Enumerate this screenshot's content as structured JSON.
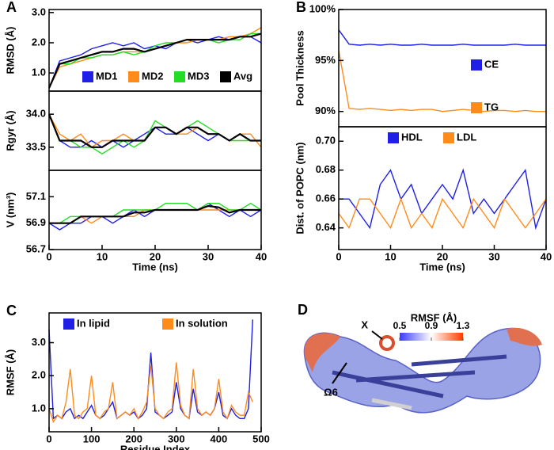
{
  "chart_data": [
    {
      "type": "line",
      "panel": "A",
      "ylabel": "RMSD (Å)",
      "x": [
        0,
        2,
        4,
        6,
        8,
        10,
        12,
        14,
        16,
        18,
        20,
        22,
        24,
        26,
        28,
        30,
        32,
        34,
        36,
        38,
        40
      ],
      "xlim": [
        0,
        40
      ],
      "ylim": [
        0.4,
        3.1
      ],
      "yticks": [
        {
          "value": 1,
          "label": "1.0"
        },
        {
          "value": 2,
          "label": "2.0"
        },
        {
          "value": 3,
          "label": "3.0"
        }
      ],
      "legend": "bottom-row",
      "series": [
        {
          "name": "MD1",
          "color": "#1f1fe6",
          "values": [
            0.5,
            1.4,
            1.5,
            1.6,
            1.8,
            1.9,
            2.0,
            1.9,
            2.0,
            1.8,
            1.9,
            1.8,
            2.0,
            2.1,
            2.0,
            2.1,
            2.2,
            2.1,
            2.2,
            2.2,
            2.0
          ]
        },
        {
          "name": "MD2",
          "color": "#ff8c1a",
          "values": [
            0.5,
            1.2,
            1.3,
            1.4,
            1.5,
            1.6,
            1.6,
            1.7,
            1.7,
            1.7,
            1.8,
            1.9,
            2.0,
            2.0,
            2.1,
            2.1,
            2.1,
            2.2,
            2.2,
            2.3,
            2.5
          ]
        },
        {
          "name": "MD3",
          "color": "#22dd22",
          "values": [
            0.5,
            1.3,
            1.3,
            1.5,
            1.5,
            1.6,
            1.6,
            1.7,
            1.6,
            1.7,
            1.9,
            2.0,
            2.0,
            2.1,
            2.1,
            2.1,
            2.0,
            2.1,
            2.1,
            2.3,
            2.3
          ]
        },
        {
          "name": "Avg",
          "color": "#000000",
          "values": [
            0.5,
            1.3,
            1.4,
            1.5,
            1.6,
            1.7,
            1.7,
            1.8,
            1.8,
            1.7,
            1.8,
            1.9,
            2.0,
            2.1,
            2.1,
            2.1,
            2.1,
            2.1,
            2.2,
            2.2,
            2.3
          ]
        }
      ]
    },
    {
      "type": "line",
      "ylabel": "Rgyr (Å)",
      "x": [
        0,
        2,
        4,
        6,
        8,
        10,
        12,
        14,
        16,
        18,
        20,
        22,
        24,
        26,
        28,
        30,
        32,
        34,
        36,
        38,
        40
      ],
      "xlim": [
        0,
        40
      ],
      "ylim": [
        33.15,
        34.35
      ],
      "yticks": [
        33.5,
        {
          "value": 34,
          "label": "34.0"
        }
      ],
      "series": [
        {
          "name": "MD1",
          "color": "#1f1fe6",
          "values": [
            34.0,
            33.6,
            33.5,
            33.5,
            33.6,
            33.5,
            33.6,
            33.5,
            33.6,
            33.7,
            33.8,
            33.7,
            33.7,
            33.8,
            33.7,
            33.6,
            33.7,
            33.6,
            33.7,
            33.6,
            33.6
          ]
        },
        {
          "name": "MD2",
          "color": "#ff8c1a",
          "values": [
            34.0,
            33.7,
            33.6,
            33.7,
            33.5,
            33.6,
            33.6,
            33.7,
            33.6,
            33.6,
            33.8,
            33.8,
            33.7,
            33.7,
            33.8,
            33.7,
            33.7,
            33.6,
            33.7,
            33.7,
            33.5
          ]
        },
        {
          "name": "MD3",
          "color": "#22dd22",
          "values": [
            34.0,
            33.6,
            33.6,
            33.5,
            33.5,
            33.4,
            33.5,
            33.6,
            33.5,
            33.6,
            33.9,
            33.8,
            33.7,
            33.8,
            33.9,
            33.8,
            33.7,
            33.6,
            33.6,
            33.6,
            33.6
          ]
        },
        {
          "name": "Avg",
          "color": "#000000",
          "values": [
            34.0,
            33.6,
            33.6,
            33.6,
            33.5,
            33.5,
            33.6,
            33.6,
            33.6,
            33.6,
            33.8,
            33.8,
            33.7,
            33.8,
            33.8,
            33.7,
            33.7,
            33.6,
            33.7,
            33.6,
            33.6
          ]
        }
      ]
    },
    {
      "type": "line",
      "ylabel": "V (nm³)",
      "xlabel": "Time (ns)",
      "x": [
        0,
        2,
        4,
        6,
        8,
        10,
        12,
        14,
        16,
        18,
        20,
        22,
        24,
        26,
        28,
        30,
        32,
        34,
        36,
        38,
        40
      ],
      "xlim": [
        0,
        40
      ],
      "xticks": [
        0,
        10,
        20,
        30,
        40
      ],
      "ylim": [
        56.7,
        57.3
      ],
      "yticks": [
        56.7,
        56.9,
        57.1
      ],
      "series": [
        {
          "name": "MD1",
          "color": "#1f1fe6",
          "values": [
            56.9,
            56.85,
            56.9,
            56.9,
            56.95,
            56.95,
            56.9,
            56.95,
            57.0,
            56.95,
            57.0,
            57.0,
            57.0,
            57.0,
            57.0,
            57.05,
            57.0,
            56.95,
            57.0,
            56.95,
            57.0
          ]
        },
        {
          "name": "MD2",
          "color": "#ff8c1a",
          "values": [
            56.9,
            56.9,
            56.9,
            56.95,
            56.9,
            56.95,
            56.95,
            56.95,
            56.95,
            57.0,
            57.0,
            57.0,
            57.0,
            57.0,
            57.0,
            57.0,
            57.0,
            57.0,
            57.0,
            57.0,
            57.0
          ]
        },
        {
          "name": "MD3",
          "color": "#22dd22",
          "values": [
            56.9,
            56.9,
            56.95,
            56.95,
            56.95,
            56.95,
            56.95,
            57.0,
            57.0,
            57.0,
            57.0,
            57.05,
            57.05,
            57.05,
            57.0,
            57.05,
            57.05,
            57.0,
            57.0,
            57.05,
            57.0
          ]
        },
        {
          "name": "Avg",
          "color": "#000000",
          "values": [
            56.9,
            56.9,
            56.9,
            56.95,
            56.95,
            56.95,
            56.95,
            56.95,
            56.98,
            56.98,
            57.0,
            57.0,
            57.0,
            57.0,
            57.0,
            57.03,
            57.02,
            56.98,
            57.0,
            57.0,
            57.0
          ]
        }
      ]
    },
    {
      "type": "line",
      "panel": "B",
      "ylabel": "Pool Thickness",
      "x": [
        0,
        2,
        4,
        6,
        8,
        10,
        12,
        14,
        16,
        18,
        20,
        22,
        24,
        26,
        28,
        30,
        32,
        34,
        36,
        38,
        40
      ],
      "xlim": [
        0,
        40
      ],
      "ylim": [
        88.5,
        100
      ],
      "yticks": [
        {
          "value": 90,
          "label": "90%"
        },
        {
          "value": 95,
          "label": "95%"
        },
        {
          "value": 100,
          "label": "100%"
        }
      ],
      "legend": "right-column",
      "series": [
        {
          "name": "CE",
          "color": "#1f1fe6",
          "values": [
            98,
            96.6,
            96.5,
            96.6,
            96.5,
            96.6,
            96.5,
            96.5,
            96.6,
            96.5,
            96.5,
            96.5,
            96.6,
            96.5,
            96.5,
            96.5,
            96.5,
            96.6,
            96.5,
            96.5,
            96.5
          ]
        },
        {
          "name": "TG",
          "color": "#ff8c1a",
          "values": [
            96,
            90.3,
            90.2,
            90.3,
            90.2,
            90.1,
            90.2,
            90.1,
            90.2,
            90.2,
            90.0,
            90.1,
            90.2,
            90.1,
            90.0,
            90.1,
            90.1,
            90.0,
            90.1,
            90.0,
            90.0
          ]
        }
      ]
    },
    {
      "type": "line",
      "ylabel": "Dist. of POPC (nm)",
      "xlabel": "Time (ns)",
      "x": [
        0,
        2,
        4,
        6,
        8,
        10,
        12,
        14,
        16,
        18,
        20,
        22,
        24,
        26,
        28,
        30,
        32,
        34,
        36,
        38,
        40
      ],
      "xlim": [
        0,
        40
      ],
      "xticks": [
        0,
        10,
        20,
        30,
        40
      ],
      "ylim": [
        0.625,
        0.71
      ],
      "yticks": [
        0.64,
        0.66,
        0.68,
        {
          "value": 0.7,
          "label": "0.70"
        }
      ],
      "legend": "top-row",
      "series": [
        {
          "name": "HDL",
          "color": "#1f1fe6",
          "values": [
            0.66,
            0.66,
            0.65,
            0.64,
            0.67,
            0.68,
            0.66,
            0.67,
            0.65,
            0.66,
            0.67,
            0.66,
            0.68,
            0.65,
            0.66,
            0.65,
            0.66,
            0.67,
            0.68,
            0.64,
            0.66
          ]
        },
        {
          "name": "LDL",
          "color": "#ff8c1a",
          "values": [
            0.65,
            0.64,
            0.66,
            0.66,
            0.65,
            0.64,
            0.66,
            0.64,
            0.65,
            0.64,
            0.66,
            0.65,
            0.64,
            0.66,
            0.65,
            0.64,
            0.66,
            0.65,
            0.64,
            0.65,
            0.66
          ]
        }
      ]
    },
    {
      "type": "line",
      "panel": "C",
      "ylabel": "RMSF (Å)",
      "xlabel": "Residue Index",
      "x": [
        0,
        10,
        20,
        30,
        40,
        50,
        60,
        70,
        80,
        90,
        100,
        110,
        120,
        130,
        140,
        150,
        160,
        170,
        180,
        190,
        200,
        210,
        220,
        230,
        240,
        250,
        260,
        270,
        280,
        290,
        300,
        310,
        320,
        330,
        340,
        350,
        360,
        370,
        380,
        390,
        400,
        410,
        420,
        430,
        440,
        450,
        460,
        470,
        480
      ],
      "xlim": [
        0,
        500
      ],
      "xticks": [
        0,
        100,
        200,
        300,
        400,
        500
      ],
      "ylim": [
        0.3,
        3.9
      ],
      "yticks": [
        {
          "value": 1,
          "label": "1.0"
        },
        {
          "value": 2,
          "label": "2.0"
        },
        {
          "value": 3,
          "label": "3.0"
        }
      ],
      "legend": "top-row",
      "series": [
        {
          "name": "In lipid",
          "color": "#1f1fe6",
          "values": [
            3.4,
            0.7,
            0.8,
            0.7,
            0.9,
            1.0,
            0.7,
            0.8,
            0.7,
            0.9,
            1.1,
            0.8,
            0.7,
            0.8,
            1.0,
            1.2,
            0.7,
            0.8,
            0.9,
            0.8,
            0.9,
            0.7,
            0.8,
            1.0,
            2.7,
            0.9,
            0.8,
            0.7,
            0.8,
            0.9,
            1.8,
            1.0,
            0.8,
            0.7,
            1.6,
            0.9,
            0.8,
            0.9,
            0.8,
            1.0,
            1.5,
            0.8,
            0.7,
            1.0,
            0.8,
            0.7,
            0.7,
            1.0,
            3.7
          ]
        },
        {
          "name": "In solution",
          "color": "#ff8c1a",
          "values": [
            1.0,
            0.6,
            0.8,
            0.7,
            1.2,
            2.2,
            0.8,
            0.7,
            0.9,
            1.0,
            2.0,
            0.8,
            0.7,
            0.9,
            1.0,
            1.8,
            0.7,
            0.8,
            0.9,
            0.8,
            1.0,
            0.7,
            0.9,
            1.2,
            2.3,
            1.0,
            0.8,
            0.7,
            0.9,
            1.0,
            2.4,
            1.1,
            0.8,
            0.7,
            2.2,
            1.0,
            0.8,
            0.9,
            0.8,
            1.0,
            1.9,
            0.9,
            0.7,
            1.1,
            0.9,
            0.8,
            0.8,
            1.5,
            1.2
          ]
        }
      ]
    },
    {
      "type": "image",
      "panel": "D",
      "title": "RMSF (Å)",
      "clim": [
        0.5,
        1.3
      ],
      "cticks": [
        0.5,
        0.9,
        1.3
      ],
      "annotations": [
        "X",
        "Ω6"
      ]
    }
  ]
}
